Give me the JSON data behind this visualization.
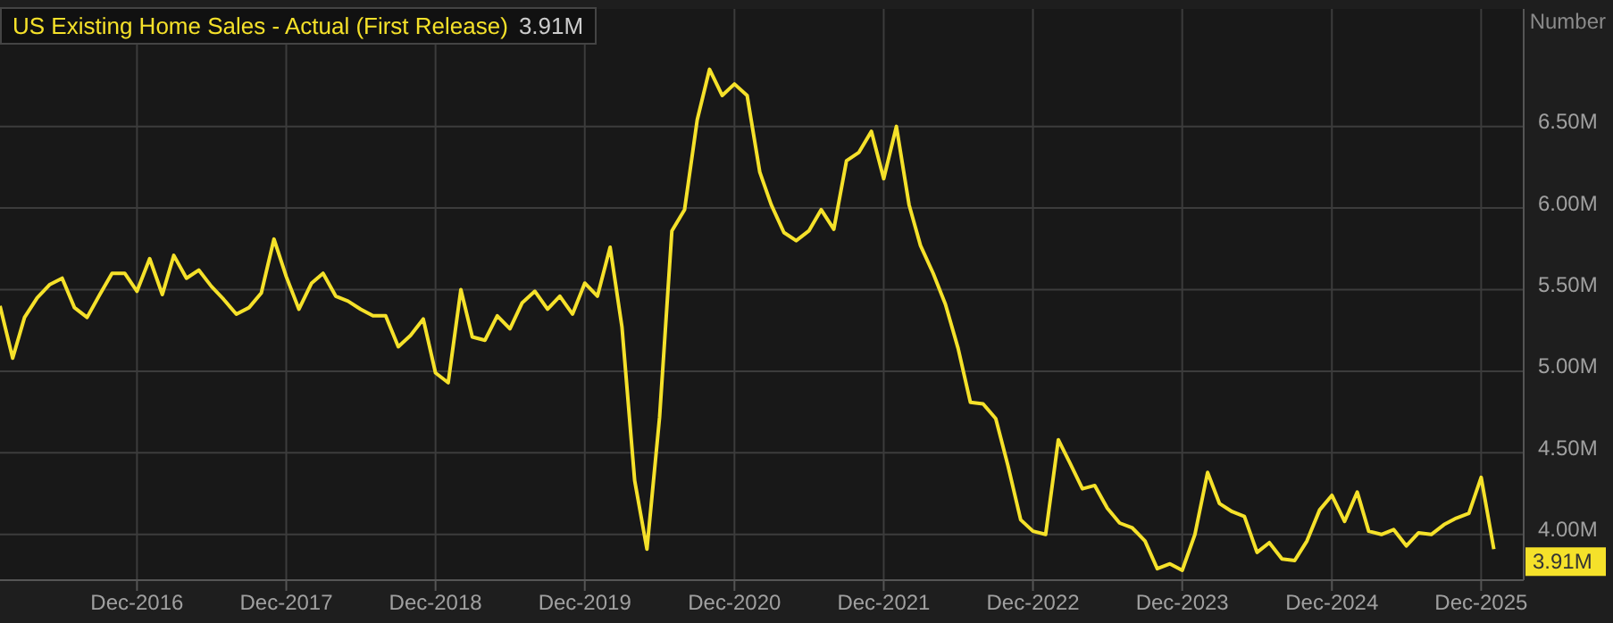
{
  "chart_data": {
    "type": "line",
    "title": "US Existing Home Sales - Actual (First Release)",
    "subtitle": "3.91M",
    "ylabel": "Number",
    "x": [
      "2016-01",
      "2016-02",
      "2016-03",
      "2016-04",
      "2016-05",
      "2016-06",
      "2016-07",
      "2016-08",
      "2016-09",
      "2016-10",
      "2016-11",
      "2016-12",
      "2017-01",
      "2017-02",
      "2017-03",
      "2017-04",
      "2017-05",
      "2017-06",
      "2017-07",
      "2017-08",
      "2017-09",
      "2017-10",
      "2017-11",
      "2017-12",
      "2018-01",
      "2018-02",
      "2018-03",
      "2018-04",
      "2018-05",
      "2018-06",
      "2018-07",
      "2018-08",
      "2018-09",
      "2018-10",
      "2018-11",
      "2018-12",
      "2019-01",
      "2019-02",
      "2019-03",
      "2019-04",
      "2019-05",
      "2019-06",
      "2019-07",
      "2019-08",
      "2019-09",
      "2019-10",
      "2019-11",
      "2019-12",
      "2020-01",
      "2020-02",
      "2020-03",
      "2020-04",
      "2020-05",
      "2020-06",
      "2020-07",
      "2020-08",
      "2020-09",
      "2020-10",
      "2020-11",
      "2020-12",
      "2021-01",
      "2021-02",
      "2021-03",
      "2021-04",
      "2021-05",
      "2021-06",
      "2021-07",
      "2021-08",
      "2021-09",
      "2021-10",
      "2021-11",
      "2021-12",
      "2022-01",
      "2022-02",
      "2022-03",
      "2022-04",
      "2022-05",
      "2022-06",
      "2022-07",
      "2022-08",
      "2022-09",
      "2022-10",
      "2022-11",
      "2022-12",
      "2023-01",
      "2023-02",
      "2023-03",
      "2023-04",
      "2023-05",
      "2023-06",
      "2023-07",
      "2023-08",
      "2023-09",
      "2023-10",
      "2023-11",
      "2023-12",
      "2024-01",
      "2024-02",
      "2024-03",
      "2024-04",
      "2024-05",
      "2024-06",
      "2024-07",
      "2024-08",
      "2024-09",
      "2024-10",
      "2024-11",
      "2024-12",
      "2025-01",
      "2025-02",
      "2025-03",
      "2025-04",
      "2025-05",
      "2025-06",
      "2025-07",
      "2025-08",
      "2025-09",
      "2025-10",
      "2025-11",
      "2025-12",
      "2026-01"
    ],
    "series": [
      {
        "color": "#f5e12a",
        "values": [
          5.4,
          5.08,
          5.33,
          5.45,
          5.53,
          5.57,
          5.39,
          5.33,
          5.47,
          5.6,
          5.6,
          5.49,
          5.69,
          5.47,
          5.71,
          5.57,
          5.62,
          5.52,
          5.44,
          5.35,
          5.39,
          5.48,
          5.81,
          5.58,
          5.38,
          5.54,
          5.6,
          5.46,
          5.43,
          5.38,
          5.34,
          5.34,
          5.15,
          5.22,
          5.32,
          4.99,
          4.93,
          5.5,
          5.21,
          5.19,
          5.34,
          5.26,
          5.42,
          5.49,
          5.38,
          5.46,
          5.35,
          5.54,
          5.46,
          5.76,
          5.27,
          4.33,
          3.91,
          4.72,
          5.86,
          5.99,
          6.54,
          6.85,
          6.69,
          6.76,
          6.69,
          6.22,
          6.02,
          5.85,
          5.8,
          5.86,
          5.99,
          5.87,
          6.29,
          6.34,
          6.47,
          6.18,
          6.5,
          6.02,
          5.77,
          5.6,
          5.41,
          5.14,
          4.81,
          4.8,
          4.71,
          4.42,
          4.09,
          4.02,
          4.0,
          4.58,
          4.44,
          4.28,
          4.3,
          4.16,
          4.07,
          4.04,
          3.96,
          3.79,
          3.82,
          3.78,
          4.0,
          4.38,
          4.19,
          4.14,
          4.11,
          3.89,
          3.95,
          3.85,
          3.84,
          3.96,
          4.15,
          4.24,
          4.08,
          4.26,
          4.02,
          4.0,
          4.03,
          3.93,
          4.01,
          4.0,
          4.06,
          4.1,
          4.13,
          4.35,
          3.91
        ]
      }
    ],
    "xlim": [
      "2016-01",
      "2026-03-15"
    ],
    "xticks": [
      {
        "value": "2016-12",
        "label": "Dec-2016"
      },
      {
        "value": "2017-12",
        "label": "Dec-2017"
      },
      {
        "value": "2018-12",
        "label": "Dec-2018"
      },
      {
        "value": "2019-12",
        "label": "Dec-2019"
      },
      {
        "value": "2020-12",
        "label": "Dec-2020"
      },
      {
        "value": "2021-12",
        "label": "Dec-2021"
      },
      {
        "value": "2022-12",
        "label": "Dec-2022"
      },
      {
        "value": "2023-12",
        "label": "Dec-2023"
      },
      {
        "value": "2024-12",
        "label": "Dec-2024"
      },
      {
        "value": "2025-12",
        "label": "Dec-2025"
      }
    ],
    "ylim": [
      3.72,
      7.22
    ],
    "yticks": [
      {
        "value": 4,
        "label": "4.00M"
      },
      {
        "value": 4.5,
        "label": "4.50M"
      },
      {
        "value": 5,
        "label": "5.00M"
      },
      {
        "value": 5.5,
        "label": "5.50M"
      },
      {
        "value": 6,
        "label": "6.00M"
      },
      {
        "value": 6.5,
        "label": "6.50M"
      }
    ],
    "annotations": [
      {
        "text": "3.91M",
        "x": "2026-01",
        "y": 3.91
      }
    ],
    "grid": true,
    "legend": false,
    "marker": "none",
    "line_style": "solid"
  }
}
